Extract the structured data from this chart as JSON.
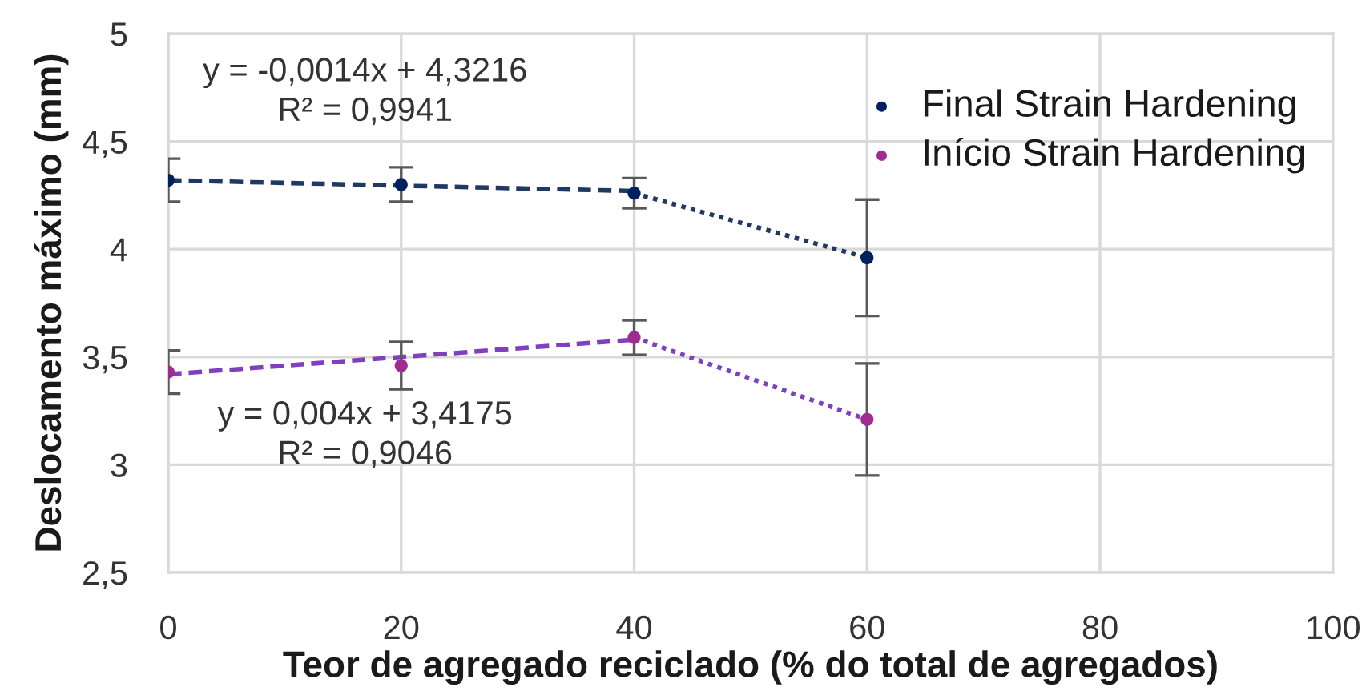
{
  "chart_data": {
    "type": "scatter",
    "xlabel": "Teor de agregado reciclado (% do total de agregados)",
    "ylabel": "Deslocamento máximo (mm)",
    "xlim": [
      0,
      100
    ],
    "xticks": [
      0,
      20,
      40,
      60,
      80,
      100
    ],
    "ylim": [
      2.5,
      5
    ],
    "yticks": [
      {
        "value": 2.5,
        "label": "2,5"
      },
      3,
      {
        "value": 3.5,
        "label": "3,5"
      },
      4,
      {
        "value": 4.5,
        "label": "4,5"
      },
      5
    ],
    "grid": true,
    "legend": "top right",
    "annotations": [
      "y = -0,0014x + 4,3216\nR² = 0,9941",
      "y = 0,004x + 3,4175\nR² = 0,9046"
    ],
    "series": [
      {
        "name": "Final Strain Hardening",
        "color": "#002060",
        "marker": "circle",
        "x": [
          0,
          20,
          40,
          60
        ],
        "values": [
          4.32,
          4.3,
          4.26,
          3.96
        ],
        "errors": [
          0.1,
          0.08,
          0.07,
          0.27
        ]
      },
      {
        "name": "Início Strain Hardening",
        "color": "#a02b93",
        "marker": "circle",
        "x": [
          0,
          20,
          40,
          60
        ],
        "values": [
          3.43,
          3.46,
          3.59,
          3.21
        ],
        "errors": [
          0.1,
          0.11,
          0.08,
          0.26
        ]
      },
      {
        "type": "line",
        "color": "#1f3864",
        "line_style": "dashed",
        "marker": "none",
        "x": [
          0,
          40
        ],
        "values": [
          4.32,
          4.27
        ]
      },
      {
        "type": "line",
        "color": "#1f3864",
        "line_style": "dotted",
        "marker": "none",
        "x": [
          40,
          60
        ],
        "values": [
          4.26,
          3.96
        ]
      },
      {
        "type": "line",
        "color": "#7f3fbf",
        "line_style": "dashed",
        "marker": "none",
        "x": [
          0,
          40
        ],
        "values": [
          3.42,
          3.58
        ]
      },
      {
        "type": "line",
        "color": "#7f3fbf",
        "line_style": "dotted",
        "marker": "none",
        "x": [
          40,
          60
        ],
        "values": [
          3.59,
          3.21
        ]
      }
    ]
  }
}
